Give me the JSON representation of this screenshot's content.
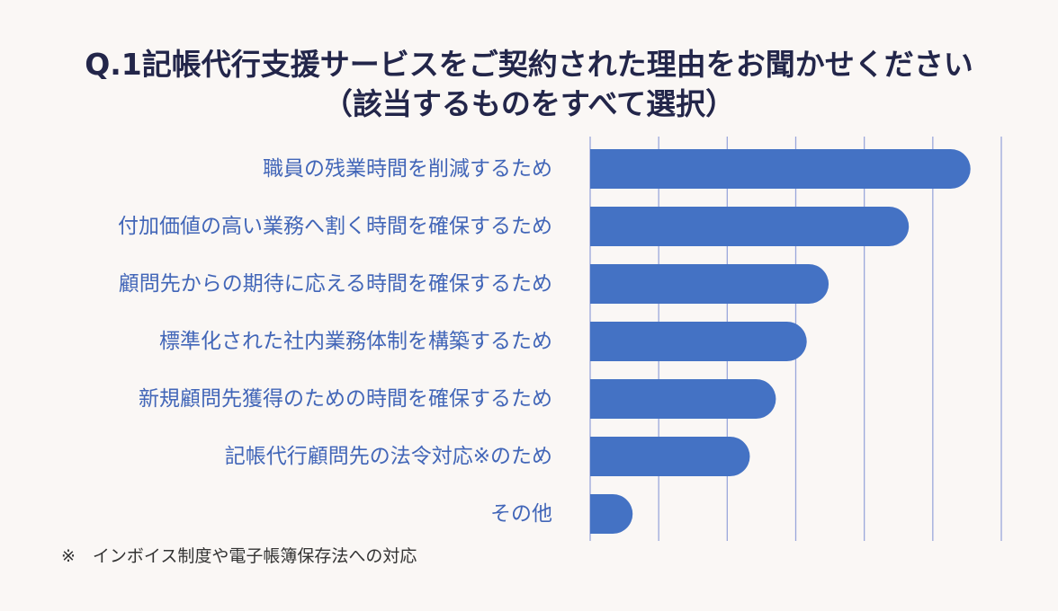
{
  "title_line1": "Q.1記帳代行支援サービスをご契約された理由をお聞かせください",
  "title_line2": "（該当するものをすべて選択）",
  "footnote": "※　インボイス制度や電子帳簿保存法への対応",
  "colors": {
    "bar": "#4472c4",
    "label": "#4266b8",
    "title": "#23264a",
    "grid": "#9aa7db",
    "background": "#faf7f5"
  },
  "chart_data": {
    "type": "bar",
    "orientation": "horizontal",
    "title": "Q.1記帳代行支援サービスをご契約された理由をお聞かせください（該当するものをすべて選択）",
    "categories": [
      "職員の残業時間を削減するため",
      "付加価値の高い業務へ割く時間を確保するため",
      "顧問先からの期待に応える時間を確保するため",
      "標準化された社内業務体制を構築するため",
      "新規顧問先獲得のための時間を確保するため",
      "記帳代行顧問先の法令対応※のため",
      "その他"
    ],
    "values": [
      55.5,
      46.5,
      34.8,
      31.6,
      27.1,
      23.3,
      6.2
    ],
    "xlim": [
      0,
      60
    ],
    "grid_interval": 10,
    "grid": true,
    "legend": "none",
    "xlabel": "",
    "ylabel": ""
  }
}
